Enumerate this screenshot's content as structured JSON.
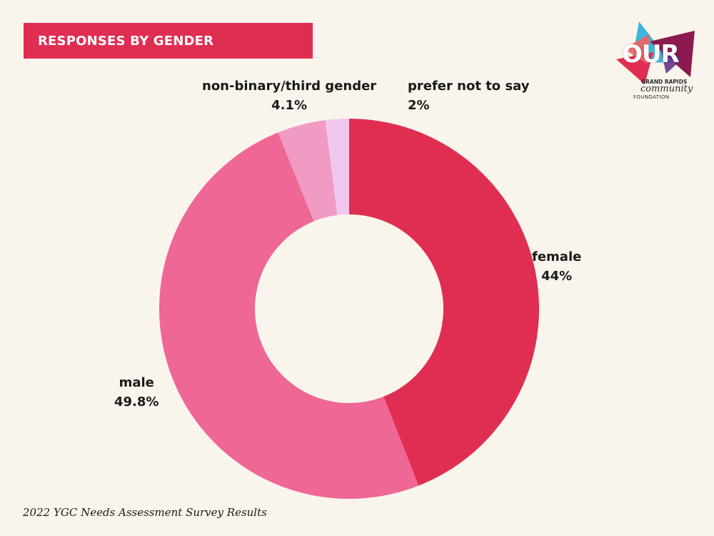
{
  "header": {
    "title": "RESPONSES BY GENDER"
  },
  "logo": {
    "word": "OUR",
    "line1": "GRAND RAPIDS",
    "line2": "community",
    "line3": "FOUNDATION",
    "colors": {
      "cyan": "#3fb5d9",
      "crimson": "#e02e52",
      "plum": "#8c1a4f",
      "coral": "#f0625f"
    }
  },
  "chart_data": {
    "type": "pie",
    "style": "donut",
    "title": "RESPONSES BY GENDER",
    "slices": [
      {
        "label": "female",
        "value": 44,
        "display": "44%",
        "color": "#e02e52"
      },
      {
        "label": "male",
        "value": 49.8,
        "display": "49.8%",
        "color": "#ef6795"
      },
      {
        "label": "non-binary/third gender",
        "value": 4.1,
        "display": "4.1%",
        "color": "#f09ac4"
      },
      {
        "label": "prefer not to say",
        "value": 2,
        "display": "2%",
        "color": "#f2c7ee"
      }
    ]
  },
  "footer": {
    "caption": "2022 YGC Needs Assessment Survey Results"
  }
}
